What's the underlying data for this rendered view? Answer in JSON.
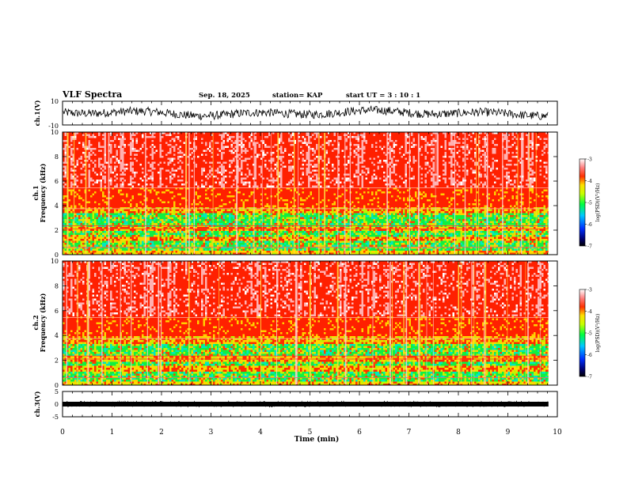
{
  "header": {
    "title": "VLF Spectra",
    "date": "Sep. 18, 2025",
    "station": "station= KAP",
    "start": "start  UT =  3 : 10 : 1"
  },
  "chart_data": [
    {
      "type": "line",
      "name": "ch1-waveform",
      "ylabel": "ch.1(V)",
      "ylim": [
        -10,
        10
      ],
      "y_ticks": [
        "10",
        "-10"
      ],
      "xlim": [
        0,
        10
      ]
    },
    {
      "type": "heatmap",
      "name": "ch1-spectrogram",
      "ylabel": "Frequency (kHz)",
      "ylabel2": "ch.1",
      "ylim": [
        0,
        10
      ],
      "y_ticks": [
        "0",
        "2",
        "4",
        "6",
        "8",
        "10"
      ],
      "xlim": [
        0,
        10
      ],
      "colorbar": {
        "label": "log(PSD)(V²/Hz)",
        "ticks": [
          "-3",
          "-4",
          "-5",
          "-6",
          "-7"
        ],
        "range": [
          -7,
          -3
        ]
      }
    },
    {
      "type": "heatmap",
      "name": "ch2-spectrogram",
      "ylabel": "Frequency (kHz)",
      "ylabel2": "ch.2",
      "ylim": [
        0,
        10
      ],
      "y_ticks": [
        "0",
        "2",
        "4",
        "6",
        "8",
        "10"
      ],
      "xlim": [
        0,
        10
      ],
      "colorbar": {
        "label": "log(PSD)(V²/Hz)",
        "ticks": [
          "-3",
          "-4",
          "-5",
          "-6",
          "-7"
        ],
        "range": [
          -7,
          -3
        ]
      }
    },
    {
      "type": "line",
      "name": "ch3-waveform",
      "ylabel": "ch.3(V)",
      "ylim": [
        -5,
        5
      ],
      "y_ticks": [
        "5",
        "0",
        "-5"
      ],
      "xlim": [
        0,
        10
      ]
    }
  ],
  "x_axis": {
    "label": "Time (min)",
    "ticks": [
      "0",
      "1",
      "2",
      "3",
      "4",
      "5",
      "6",
      "7",
      "8",
      "9",
      "10"
    ],
    "data_end": 9.82
  }
}
